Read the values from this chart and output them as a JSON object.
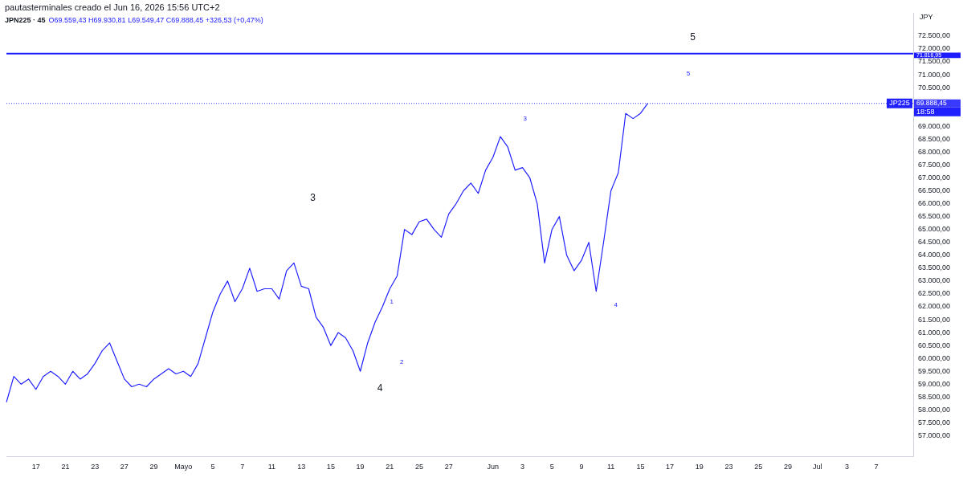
{
  "chart_data": {
    "type": "line",
    "title": "JPN225 · 45",
    "subtitle": "O69.559,43 H69.930,81 L69.549,47 C69.888,45 +326,53 (+0,47%)",
    "ylabel": "JPY",
    "categories": [
      null,
      null,
      null,
      null,
      "17",
      null,
      null,
      null,
      "21",
      null,
      null,
      null,
      "23",
      null,
      null,
      null,
      "27",
      null,
      null,
      null,
      "29",
      null,
      null,
      null,
      "Mayo",
      null,
      null,
      null,
      "5",
      null,
      null,
      null,
      "7",
      null,
      null,
      null,
      "11",
      null,
      null,
      null,
      "13",
      null,
      null,
      null,
      "15",
      null,
      null,
      null,
      "19",
      null,
      null,
      null,
      "21",
      null,
      null,
      null,
      "25",
      null,
      null,
      null,
      "27",
      null,
      null,
      null,
      null,
      null,
      "Jun",
      null,
      null,
      null,
      "3",
      null,
      null,
      null,
      "5",
      null,
      null,
      null,
      "9",
      null,
      null,
      null,
      "11",
      null,
      null,
      null,
      "15",
      null,
      null,
      null,
      "17",
      null,
      null,
      null,
      "19",
      null,
      null,
      null,
      "23",
      null,
      null,
      null,
      "25",
      null,
      null,
      null,
      "29",
      null,
      null,
      null,
      "Jul",
      null,
      null,
      null,
      "3",
      null,
      null,
      null,
      "7",
      null,
      null,
      null,
      null,
      null
    ],
    "series": [
      {
        "color": "#2020ff",
        "values": [
          58300,
          59300,
          59000,
          59200,
          58800,
          59300,
          59500,
          59300,
          59000,
          59500,
          59200,
          59400,
          59800,
          60300,
          60600,
          59900,
          59200,
          58900,
          59000,
          58900,
          59200,
          59400,
          59600,
          59400,
          59500,
          59300,
          59800,
          60800,
          61800,
          62500,
          63000,
          62200,
          62700,
          63500,
          62600,
          62700,
          62700,
          62300,
          63400,
          63700,
          62800,
          62700,
          61600,
          61200,
          60500,
          61000,
          60800,
          60300,
          59500,
          60600,
          61400,
          62000,
          62700,
          63200,
          65000,
          64800,
          65300,
          65400,
          65000,
          64700,
          65600,
          66000,
          66500,
          66800,
          66400,
          67300,
          67800,
          68600,
          68200,
          67300,
          67400,
          67000,
          66000,
          63700,
          65000,
          65500,
          64000,
          63400,
          63800,
          64500,
          62600,
          64500,
          66500,
          67200,
          69500,
          69300,
          69500,
          69890,
          null,
          null,
          null,
          null,
          null,
          null,
          null,
          null,
          null,
          null,
          null,
          null,
          null,
          null,
          null,
          null,
          null,
          null,
          null,
          null,
          null,
          null,
          null,
          null,
          null,
          null,
          null,
          null,
          null,
          null,
          null,
          null,
          null,
          null,
          null,
          null
        ]
      }
    ],
    "ylim": [
      56200,
      73400
    ],
    "yticks": [
      {
        "value": 57000,
        "label": "57.000,00"
      },
      {
        "value": 57500,
        "label": "57.500,00"
      },
      {
        "value": 58000,
        "label": "58.000,00"
      },
      {
        "value": 58500,
        "label": "58.500,00"
      },
      {
        "value": 59000,
        "label": "59.000,00"
      },
      {
        "value": 59500,
        "label": "59.500,00"
      },
      {
        "value": 60000,
        "label": "60.000,00"
      },
      {
        "value": 60500,
        "label": "60.500,00"
      },
      {
        "value": 61000,
        "label": "61.000,00"
      },
      {
        "value": 61500,
        "label": "61.500,00"
      },
      {
        "value": 62000,
        "label": "62.000,00"
      },
      {
        "value": 62500,
        "label": "62.500,00"
      },
      {
        "value": 63000,
        "label": "63.000,00"
      },
      {
        "value": 63500,
        "label": "63.500,00"
      },
      {
        "value": 64000,
        "label": "64.000,00"
      },
      {
        "value": 64500,
        "label": "64.500,00"
      },
      {
        "value": 65000,
        "label": "65.000,00"
      },
      {
        "value": 65500,
        "label": "65.500,00"
      },
      {
        "value": 66000,
        "label": "66.000,00"
      },
      {
        "value": 66500,
        "label": "66.500,00"
      },
      {
        "value": 67000,
        "label": "67.000,00"
      },
      {
        "value": 67500,
        "label": "67.500,00"
      },
      {
        "value": 68000,
        "label": "68.000,00"
      },
      {
        "value": 68500,
        "label": "68.500,00"
      },
      {
        "value": 69000,
        "label": "69.000,00"
      },
      {
        "value": 70500,
        "label": "70.500,00"
      },
      {
        "value": 71000,
        "label": "71.000,00"
      },
      {
        "value": 71500,
        "label": "71.500,00"
      },
      {
        "value": 72000,
        "label": "72.000,00"
      },
      {
        "value": 72500,
        "label": "72.500,00"
      }
    ],
    "ref_lines": [
      {
        "axis": "y",
        "value": 71816.95,
        "label": "71.816,95",
        "color": "#1c1cff",
        "line_style": "solid"
      },
      {
        "axis": "y",
        "value": 69888.45,
        "label": "69.888,45",
        "color": "#3a3aff",
        "line_style": "dotted"
      }
    ],
    "annotations": [
      "pautasterminales creado el Jun 16, 2026 15:56 UTC+2",
      "3",
      "4",
      "1",
      "2",
      "3",
      "4",
      "5",
      "5",
      "JP225",
      "18:58"
    ],
    "grid": false,
    "legend": false,
    "marker": "none",
    "line_style": "solid"
  }
}
